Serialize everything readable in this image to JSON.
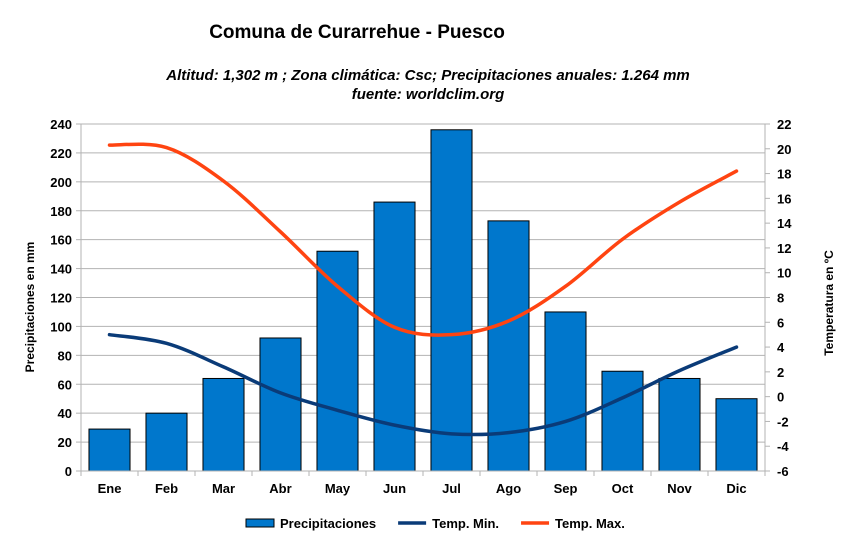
{
  "chart_data": {
    "type": "bar",
    "title": "Comuna de Curarrehue - Puesco",
    "subtitle": "Altitud: 1,302 m ;  Zona climática: Csc;  Precipitaciones anuales: 1.264 mm",
    "source": "fuente: worldclim.org",
    "categories": [
      "Ene",
      "Feb",
      "Mar",
      "Abr",
      "May",
      "Jun",
      "Jul",
      "Ago",
      "Sep",
      "Oct",
      "Nov",
      "Dic"
    ],
    "ylabel": "Precipitaciones en mm",
    "ylim": [
      0,
      240
    ],
    "yticks": [
      0,
      20,
      40,
      60,
      80,
      100,
      120,
      140,
      160,
      180,
      200,
      220,
      240
    ],
    "y2label": "Temperatura en ºC",
    "y2lim": [
      -6,
      22
    ],
    "y2ticks": [
      -6,
      -4,
      -2,
      0,
      2,
      4,
      6,
      8,
      10,
      12,
      14,
      16,
      18,
      20,
      22
    ],
    "grid": true,
    "legend_position": "bottom",
    "series": [
      {
        "name": "Precipitaciones",
        "kind": "bar",
        "axis": "left",
        "color": "#0077cc",
        "values": [
          29,
          40,
          64,
          92,
          152,
          186,
          236,
          173,
          110,
          69,
          64,
          50
        ]
      },
      {
        "name": "Temp. Min.",
        "kind": "line",
        "axis": "right",
        "color": "#0a3b78",
        "values": [
          5.0,
          4.3,
          2.4,
          0.3,
          -1.1,
          -2.3,
          -3.0,
          -2.9,
          -2.0,
          -0.1,
          2.1,
          4.0
        ]
      },
      {
        "name": "Temp. Max.",
        "kind": "line",
        "axis": "right",
        "color": "#ff4411",
        "values": [
          20.3,
          20.1,
          17.4,
          13.3,
          8.9,
          5.6,
          5.0,
          6.1,
          8.9,
          12.7,
          15.7,
          18.2
        ]
      }
    ]
  }
}
